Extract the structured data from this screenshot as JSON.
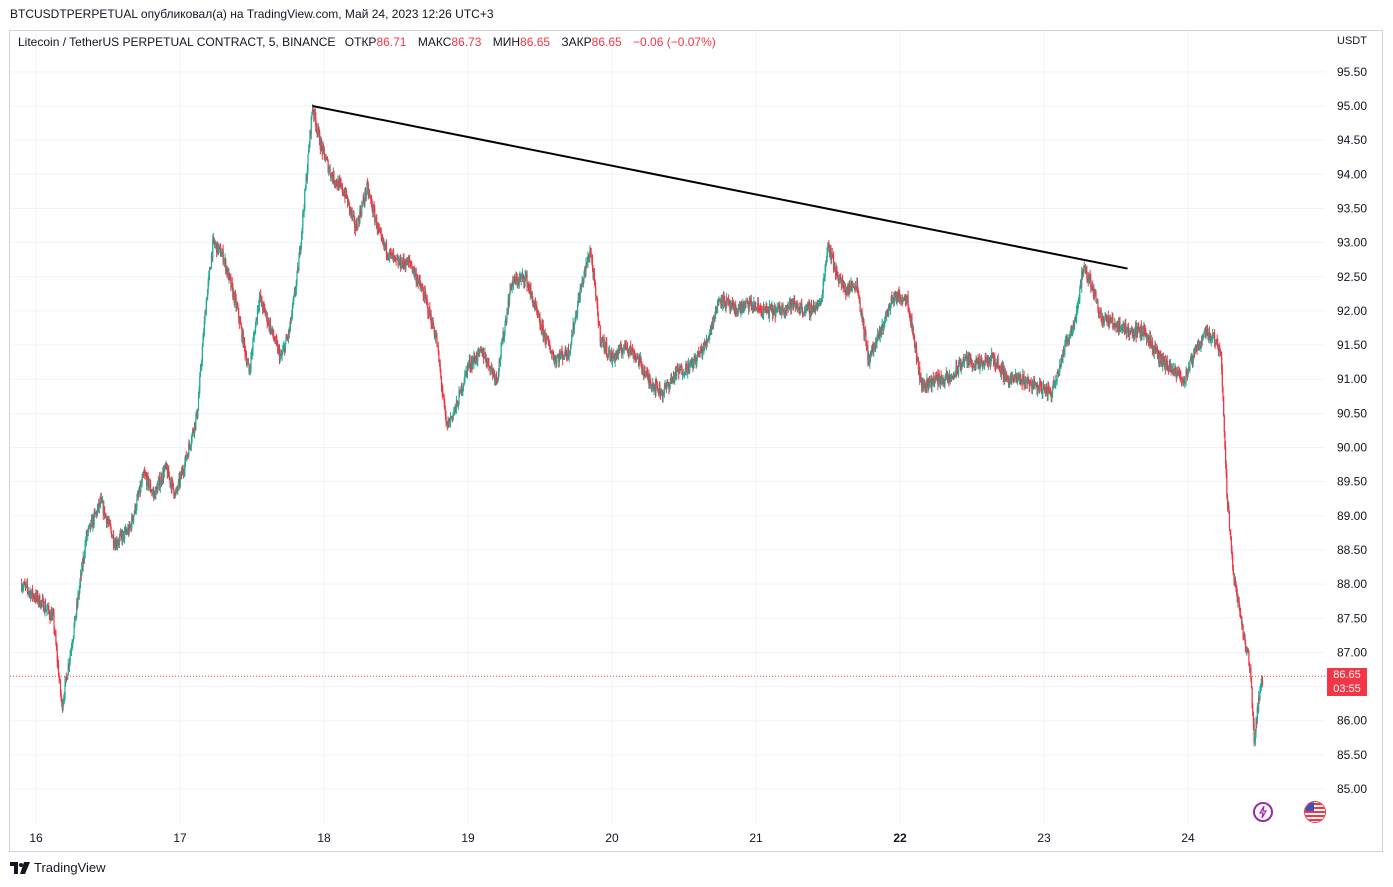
{
  "header": {
    "publish_line": "BTCUSDTPERPETUAL опубликовал(а) на TradingView.com, Май 24, 2023 12:26 UTC+3"
  },
  "legend": {
    "symbol": "Litecoin / TetherUS PERPETUAL CONTRACT, 5, BINANCE",
    "open_label": "ОТКР",
    "open_value": "86.71",
    "high_label": "МАКС",
    "high_value": "86.73",
    "low_label": "МИН",
    "low_value": "86.65",
    "close_label": "ЗАКР",
    "close_value": "86.65",
    "change": "−0.06 (−0.07%)"
  },
  "footer": {
    "brand": "TradingView"
  },
  "price_tag": {
    "price": "86.65",
    "countdown": "03:55"
  },
  "icons": {
    "lightning": "lightning-icon",
    "flag": "us-flag-icon"
  },
  "colors": {
    "up": "#22ab94",
    "down": "#f23645",
    "grid": "#f0f3fa",
    "trendline": "#000000"
  },
  "chart_data": {
    "type": "candlestick",
    "currency": "USDT",
    "ylim": [
      84.6,
      96.0
    ],
    "yticks": [
      "95.50",
      "95.00",
      "94.50",
      "94.00",
      "93.50",
      "93.00",
      "92.50",
      "92.00",
      "91.50",
      "91.00",
      "90.50",
      "90.00",
      "89.50",
      "89.00",
      "88.50",
      "88.00",
      "87.50",
      "87.00",
      "86.50",
      "86.00",
      "85.50",
      "85.00"
    ],
    "xlim": [
      15.9,
      24.78
    ],
    "xticks": [
      {
        "x": 16,
        "label": "16"
      },
      {
        "x": 17,
        "label": "17"
      },
      {
        "x": 18,
        "label": "18"
      },
      {
        "x": 19,
        "label": "19"
      },
      {
        "x": 20,
        "label": "20"
      },
      {
        "x": 21,
        "label": "21"
      },
      {
        "x": 22,
        "label": "22"
      },
      {
        "x": 23,
        "label": "23"
      },
      {
        "x": 24,
        "label": "24"
      }
    ],
    "last_price": 86.65,
    "trendline": [
      {
        "x": 17.92,
        "y": 95.0
      },
      {
        "x": 23.58,
        "y": 92.62
      }
    ],
    "path": [
      [
        15.9,
        88.0
      ],
      [
        16.05,
        87.7
      ],
      [
        16.12,
        87.5
      ],
      [
        16.18,
        86.2
      ],
      [
        16.26,
        87.3
      ],
      [
        16.35,
        88.7
      ],
      [
        16.45,
        89.2
      ],
      [
        16.55,
        88.6
      ],
      [
        16.65,
        88.8
      ],
      [
        16.75,
        89.6
      ],
      [
        16.82,
        89.3
      ],
      [
        16.9,
        89.7
      ],
      [
        16.97,
        89.3
      ],
      [
        17.05,
        89.9
      ],
      [
        17.12,
        90.5
      ],
      [
        17.18,
        92.1
      ],
      [
        17.23,
        93.0
      ],
      [
        17.3,
        92.8
      ],
      [
        17.4,
        92.0
      ],
      [
        17.48,
        91.1
      ],
      [
        17.55,
        92.2
      ],
      [
        17.62,
        91.8
      ],
      [
        17.7,
        91.3
      ],
      [
        17.76,
        91.7
      ],
      [
        17.82,
        92.6
      ],
      [
        17.88,
        94.0
      ],
      [
        17.92,
        95.0
      ],
      [
        17.98,
        94.4
      ],
      [
        18.05,
        94.0
      ],
      [
        18.15,
        93.7
      ],
      [
        18.22,
        93.2
      ],
      [
        18.3,
        93.8
      ],
      [
        18.4,
        93.0
      ],
      [
        18.5,
        92.7
      ],
      [
        18.6,
        92.7
      ],
      [
        18.7,
        92.2
      ],
      [
        18.78,
        91.6
      ],
      [
        18.85,
        90.3
      ],
      [
        18.92,
        90.6
      ],
      [
        19.0,
        91.2
      ],
      [
        19.1,
        91.4
      ],
      [
        19.2,
        91.0
      ],
      [
        19.3,
        92.4
      ],
      [
        19.4,
        92.5
      ],
      [
        19.5,
        91.8
      ],
      [
        19.6,
        91.3
      ],
      [
        19.7,
        91.4
      ],
      [
        19.78,
        92.3
      ],
      [
        19.85,
        92.9
      ],
      [
        19.92,
        91.6
      ],
      [
        20.0,
        91.3
      ],
      [
        20.1,
        91.5
      ],
      [
        20.18,
        91.3
      ],
      [
        20.25,
        91.0
      ],
      [
        20.35,
        90.8
      ],
      [
        20.45,
        91.1
      ],
      [
        20.55,
        91.2
      ],
      [
        20.65,
        91.5
      ],
      [
        20.75,
        92.2
      ],
      [
        20.85,
        92.0
      ],
      [
        20.95,
        92.1
      ],
      [
        21.05,
        92.0
      ],
      [
        21.15,
        92.0
      ],
      [
        21.25,
        92.1
      ],
      [
        21.35,
        92.0
      ],
      [
        21.45,
        92.1
      ],
      [
        21.5,
        93.0
      ],
      [
        21.55,
        92.6
      ],
      [
        21.62,
        92.3
      ],
      [
        21.7,
        92.4
      ],
      [
        21.78,
        91.3
      ],
      [
        21.85,
        91.6
      ],
      [
        21.95,
        92.2
      ],
      [
        22.05,
        92.2
      ],
      [
        22.15,
        90.9
      ],
      [
        22.25,
        91.0
      ],
      [
        22.35,
        91.0
      ],
      [
        22.45,
        91.3
      ],
      [
        22.55,
        91.2
      ],
      [
        22.65,
        91.3
      ],
      [
        22.75,
        91.0
      ],
      [
        22.85,
        91.0
      ],
      [
        22.95,
        90.9
      ],
      [
        23.05,
        90.8
      ],
      [
        23.15,
        91.5
      ],
      [
        23.22,
        91.9
      ],
      [
        23.27,
        92.6
      ],
      [
        23.33,
        92.4
      ],
      [
        23.4,
        91.9
      ],
      [
        23.5,
        91.8
      ],
      [
        23.6,
        91.7
      ],
      [
        23.7,
        91.7
      ],
      [
        23.8,
        91.3
      ],
      [
        23.9,
        91.1
      ],
      [
        23.98,
        91.0
      ],
      [
        24.05,
        91.4
      ],
      [
        24.12,
        91.7
      ],
      [
        24.18,
        91.6
      ],
      [
        24.23,
        91.4
      ],
      [
        24.27,
        89.3
      ],
      [
        24.32,
        88.1
      ],
      [
        24.38,
        87.3
      ],
      [
        24.43,
        86.8
      ],
      [
        24.46,
        85.7
      ],
      [
        24.49,
        86.3
      ],
      [
        24.52,
        86.65
      ]
    ]
  }
}
